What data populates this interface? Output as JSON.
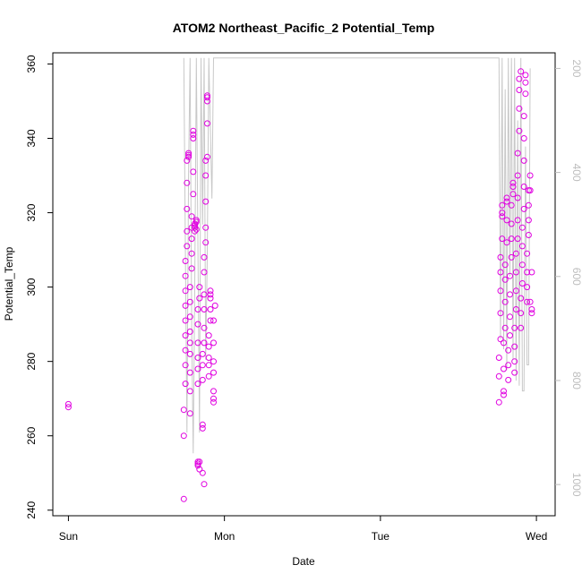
{
  "chart_data": {
    "type": "scatter",
    "title": "ATOM2 Northeast_Pacific_2 Potential_Temp",
    "xlabel": "Date",
    "ylabel": "Potential_Temp",
    "xlim": [
      -0.1,
      3.12
    ],
    "ylim": [
      238.5,
      363
    ],
    "xticks": [
      {
        "value": 0,
        "label": "Sun"
      },
      {
        "value": 1,
        "label": "Mon"
      },
      {
        "value": 2,
        "label": "Tue"
      },
      {
        "value": 3,
        "label": "Wed"
      }
    ],
    "yticks": [
      240,
      260,
      280,
      300,
      320,
      340,
      360
    ],
    "right_axis": {
      "ylim": [
        1060,
        170
      ],
      "ticks": [
        200,
        400,
        600,
        800,
        1000
      ],
      "color": "#bdbdbd"
    },
    "colors": {
      "points": "#e000e0",
      "profile_line": "#c8c8c8"
    },
    "series": [
      {
        "type": "points",
        "points": [
          [
            0.0,
            268.5
          ],
          [
            0.0,
            267.7
          ],
          [
            0.74,
            243
          ],
          [
            0.74,
            260
          ],
          [
            0.74,
            267
          ],
          [
            0.75,
            274
          ],
          [
            0.75,
            279
          ],
          [
            0.75,
            283
          ],
          [
            0.75,
            287
          ],
          [
            0.75,
            291
          ],
          [
            0.75,
            295
          ],
          [
            0.75,
            299
          ],
          [
            0.75,
            303
          ],
          [
            0.75,
            307
          ],
          [
            0.76,
            311
          ],
          [
            0.76,
            315
          ],
          [
            0.76,
            321
          ],
          [
            0.76,
            328
          ],
          [
            0.76,
            334
          ],
          [
            0.77,
            335
          ],
          [
            0.77,
            335.5
          ],
          [
            0.77,
            336
          ],
          [
            0.78,
            266
          ],
          [
            0.78,
            272
          ],
          [
            0.78,
            277
          ],
          [
            0.78,
            282
          ],
          [
            0.78,
            285
          ],
          [
            0.78,
            288
          ],
          [
            0.78,
            292
          ],
          [
            0.78,
            296
          ],
          [
            0.78,
            300
          ],
          [
            0.79,
            305
          ],
          [
            0.79,
            309
          ],
          [
            0.79,
            313
          ],
          [
            0.79,
            316
          ],
          [
            0.79,
            319
          ],
          [
            0.8,
            325
          ],
          [
            0.8,
            331
          ],
          [
            0.8,
            340
          ],
          [
            0.8,
            341
          ],
          [
            0.8,
            342
          ],
          [
            0.81,
            315
          ],
          [
            0.81,
            316
          ],
          [
            0.81,
            316.5
          ],
          [
            0.81,
            317
          ],
          [
            0.82,
            317.5
          ],
          [
            0.82,
            318
          ],
          [
            0.82,
            315.5
          ],
          [
            0.83,
            253
          ],
          [
            0.83,
            252.5
          ],
          [
            0.83,
            252
          ],
          [
            0.84,
            251
          ],
          [
            0.84,
            253
          ],
          [
            0.83,
            274
          ],
          [
            0.83,
            278
          ],
          [
            0.83,
            281
          ],
          [
            0.83,
            285
          ],
          [
            0.83,
            290
          ],
          [
            0.83,
            294
          ],
          [
            0.84,
            297
          ],
          [
            0.84,
            300
          ],
          [
            0.86,
            262
          ],
          [
            0.86,
            263
          ],
          [
            0.86,
            250
          ],
          [
            0.87,
            247
          ],
          [
            0.86,
            275
          ],
          [
            0.86,
            279
          ],
          [
            0.86,
            282
          ],
          [
            0.87,
            285
          ],
          [
            0.87,
            289
          ],
          [
            0.87,
            294
          ],
          [
            0.87,
            298
          ],
          [
            0.87,
            304
          ],
          [
            0.87,
            308
          ],
          [
            0.88,
            312
          ],
          [
            0.88,
            316
          ],
          [
            0.88,
            323
          ],
          [
            0.88,
            330
          ],
          [
            0.88,
            334
          ],
          [
            0.89,
            344
          ],
          [
            0.89,
            350
          ],
          [
            0.89,
            351
          ],
          [
            0.89,
            351.5
          ],
          [
            0.89,
            335
          ],
          [
            0.9,
            276
          ],
          [
            0.9,
            279
          ],
          [
            0.9,
            281
          ],
          [
            0.9,
            284
          ],
          [
            0.9,
            287
          ],
          [
            0.91,
            291
          ],
          [
            0.91,
            294
          ],
          [
            0.91,
            297
          ],
          [
            0.91,
            298
          ],
          [
            0.91,
            299
          ],
          [
            0.93,
            269
          ],
          [
            0.93,
            270
          ],
          [
            0.93,
            272
          ],
          [
            0.93,
            277
          ],
          [
            0.93,
            280
          ],
          [
            0.93,
            285
          ],
          [
            0.93,
            291
          ],
          [
            0.94,
            295
          ],
          [
            2.76,
            269
          ],
          [
            2.76,
            276
          ],
          [
            2.76,
            281
          ],
          [
            2.77,
            286
          ],
          [
            2.77,
            293
          ],
          [
            2.77,
            299
          ],
          [
            2.77,
            304
          ],
          [
            2.77,
            308
          ],
          [
            2.78,
            313
          ],
          [
            2.78,
            319
          ],
          [
            2.78,
            320
          ],
          [
            2.78,
            322
          ],
          [
            2.79,
            271
          ],
          [
            2.79,
            272
          ],
          [
            2.79,
            278
          ],
          [
            2.79,
            285
          ],
          [
            2.8,
            289
          ],
          [
            2.8,
            296
          ],
          [
            2.8,
            302
          ],
          [
            2.8,
            306
          ],
          [
            2.81,
            312
          ],
          [
            2.81,
            318
          ],
          [
            2.81,
            323
          ],
          [
            2.81,
            324
          ],
          [
            2.82,
            275
          ],
          [
            2.82,
            279
          ],
          [
            2.82,
            283
          ],
          [
            2.83,
            287
          ],
          [
            2.83,
            292
          ],
          [
            2.83,
            298
          ],
          [
            2.83,
            303
          ],
          [
            2.84,
            308
          ],
          [
            2.84,
            313
          ],
          [
            2.84,
            317
          ],
          [
            2.84,
            322
          ],
          [
            2.85,
            325
          ],
          [
            2.85,
            327
          ],
          [
            2.85,
            328
          ],
          [
            2.86,
            277
          ],
          [
            2.86,
            280
          ],
          [
            2.86,
            284
          ],
          [
            2.86,
            289
          ],
          [
            2.87,
            294
          ],
          [
            2.87,
            299
          ],
          [
            2.87,
            304
          ],
          [
            2.87,
            309
          ],
          [
            2.88,
            313
          ],
          [
            2.88,
            318
          ],
          [
            2.88,
            324
          ],
          [
            2.88,
            330
          ],
          [
            2.88,
            336
          ],
          [
            2.89,
            342
          ],
          [
            2.89,
            348
          ],
          [
            2.89,
            353
          ],
          [
            2.89,
            356
          ],
          [
            2.9,
            358
          ],
          [
            2.9,
            289
          ],
          [
            2.9,
            293
          ],
          [
            2.9,
            297
          ],
          [
            2.91,
            301
          ],
          [
            2.91,
            306
          ],
          [
            2.91,
            311
          ],
          [
            2.91,
            316
          ],
          [
            2.92,
            321
          ],
          [
            2.92,
            327
          ],
          [
            2.92,
            334
          ],
          [
            2.92,
            340
          ],
          [
            2.92,
            346
          ],
          [
            2.93,
            352
          ],
          [
            2.93,
            355
          ],
          [
            2.93,
            357
          ],
          [
            2.94,
            296
          ],
          [
            2.94,
            300
          ],
          [
            2.94,
            304
          ],
          [
            2.94,
            309
          ],
          [
            2.95,
            314
          ],
          [
            2.95,
            318
          ],
          [
            2.95,
            322
          ],
          [
            2.95,
            326
          ],
          [
            2.96,
            330
          ],
          [
            2.96,
            326
          ],
          [
            2.96,
            296
          ],
          [
            2.97,
            294
          ],
          [
            2.97,
            293
          ],
          [
            2.97,
            304
          ]
        ]
      },
      {
        "type": "profile_line",
        "points": [
          [
            0.74,
            180
          ],
          [
            0.75,
            560
          ],
          [
            0.76,
            900
          ],
          [
            0.77,
            400
          ],
          [
            0.78,
            180
          ],
          [
            0.79,
            700
          ],
          [
            0.8,
            940
          ],
          [
            0.81,
            620
          ],
          [
            0.82,
            180
          ],
          [
            0.84,
            900
          ],
          [
            0.85,
            180
          ],
          [
            0.86,
            500
          ],
          [
            0.87,
            180
          ],
          [
            0.88,
            760
          ],
          [
            0.89,
            560
          ],
          [
            0.9,
            180
          ],
          [
            0.92,
            450
          ],
          [
            0.93,
            180
          ],
          [
            2.74,
            180
          ],
          [
            2.76,
            180
          ],
          [
            2.77,
            720
          ],
          [
            2.78,
            180
          ],
          [
            2.79,
            740
          ],
          [
            2.8,
            240
          ],
          [
            2.81,
            780
          ],
          [
            2.82,
            180
          ],
          [
            2.83,
            600
          ],
          [
            2.84,
            180
          ],
          [
            2.85,
            760
          ],
          [
            2.86,
            180
          ],
          [
            2.87,
            800
          ],
          [
            2.88,
            300
          ],
          [
            2.89,
            810
          ],
          [
            2.9,
            180
          ],
          [
            2.91,
            820
          ],
          [
            2.92,
            820
          ],
          [
            2.93,
            350
          ],
          [
            2.94,
            770
          ],
          [
            2.95,
            770
          ],
          [
            2.96,
            200
          ]
        ]
      }
    ]
  }
}
